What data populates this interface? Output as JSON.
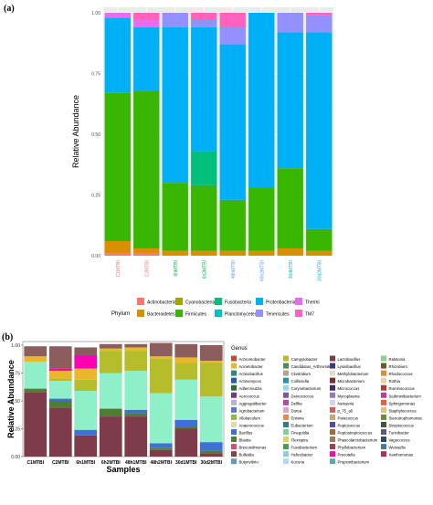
{
  "panel_a": {
    "label": "(a)"
  },
  "panel_b": {
    "label": "(b)"
  },
  "chart_data": [
    {
      "type": "bar",
      "stacked": true,
      "ylabel": "Relative Abundance",
      "xlabel": "",
      "ylim": [
        0,
        1
      ],
      "yticks": [
        "0.00",
        "0.25",
        "0.50",
        "0.75",
        "1.00"
      ],
      "grid": true,
      "legend_title": "Phylum",
      "legend_position": "bottom",
      "categories": [
        "C1MTBI",
        "C2MTBI",
        "6hMTBI",
        "6h2MTBI",
        "48hMTBI",
        "48h2MTBI",
        "30dMTBI",
        "30d2MTBI"
      ],
      "category_colors": [
        "#F8766D",
        "#F8766D",
        "#00BA38",
        "#00BA38",
        "#619CFF",
        "#619CFF",
        "#00BFC4",
        "#00BFC4"
      ],
      "series": [
        {
          "name": "Actinobacteria",
          "color": "#F8766D",
          "values": [
            0.01,
            0.01,
            0.0,
            0.0,
            0.0,
            0.0,
            0.0,
            0.0
          ]
        },
        {
          "name": "Bacteroidetes",
          "color": "#D89000",
          "values": [
            0.05,
            0.02,
            0.02,
            0.02,
            0.02,
            0.02,
            0.03,
            0.02
          ]
        },
        {
          "name": "Cyanobacteria",
          "color": "#A3A500",
          "values": [
            0.0,
            0.0,
            0.0,
            0.0,
            0.0,
            0.0,
            0.0,
            0.0
          ]
        },
        {
          "name": "Firmicutes",
          "color": "#39B600",
          "values": [
            0.61,
            0.65,
            0.28,
            0.27,
            0.21,
            0.26,
            0.33,
            0.09
          ]
        },
        {
          "name": "Fusobacteria",
          "color": "#00BF7D",
          "values": [
            0.0,
            0.0,
            0.0,
            0.14,
            0.0,
            0.0,
            0.0,
            0.0
          ]
        },
        {
          "name": "Planctomycetes",
          "color": "#00BFC4",
          "values": [
            0.0,
            0.0,
            0.0,
            0.0,
            0.0,
            0.0,
            0.0,
            0.0
          ]
        },
        {
          "name": "Proteobacteria",
          "color": "#00B0F6",
          "values": [
            0.31,
            0.26,
            0.64,
            0.51,
            0.64,
            0.72,
            0.56,
            0.81
          ]
        },
        {
          "name": "Tenericutes",
          "color": "#9590FF",
          "values": [
            0.0,
            0.0,
            0.06,
            0.03,
            0.07,
            0.0,
            0.08,
            0.07
          ]
        },
        {
          "name": "Thermi",
          "color": "#E76BF3",
          "values": [
            0.02,
            0.03,
            0.0,
            0.0,
            0.0,
            0.0,
            0.0,
            0.0
          ]
        },
        {
          "name": "TM7",
          "color": "#FF62BC",
          "values": [
            0.0,
            0.03,
            0.0,
            0.03,
            0.06,
            0.0,
            0.0,
            0.01
          ]
        }
      ]
    },
    {
      "type": "bar",
      "stacked": true,
      "ylabel": "Relative Abundance",
      "xlabel": "Samples",
      "ylim": [
        0,
        1
      ],
      "yticks": [
        "0.00",
        "0.25",
        "0.50",
        "0.75",
        "1.00"
      ],
      "grid": false,
      "legend_title": "Genus",
      "legend_position": "right",
      "categories": [
        "C1MTBI",
        "C2MTBI",
        "6h1MTBI",
        "6h2MTBI",
        "48h1MTBI",
        "48h2MTBI",
        "30d1MTBI",
        "30d2MTBI"
      ],
      "series": [
        {
          "name": "Lactobacillus",
          "color": "#7E3B4B",
          "values": [
            0.58,
            0.44,
            0.19,
            0.36,
            0.36,
            0.06,
            0.25,
            0.03
          ]
        },
        {
          "name": "Blautia",
          "color": "#4F7D34",
          "values": [
            0.03,
            0.06,
            0.0,
            0.07,
            0.03,
            0.02,
            0.02,
            0.02
          ]
        },
        {
          "name": "Bacillus",
          "color": "#3F6FD8",
          "values": [
            0.0,
            0.02,
            0.05,
            0.0,
            0.03,
            0.04,
            0.06,
            0.08
          ]
        },
        {
          "name": "Escherichia",
          "color": "#8DF0C9",
          "values": [
            0.24,
            0.16,
            0.35,
            0.32,
            0.35,
            0.45,
            0.36,
            0.41
          ]
        },
        {
          "name": "Campylobacter",
          "color": "#B6BD2A",
          "values": [
            0.0,
            0.02,
            0.1,
            0.2,
            0.18,
            0.31,
            0.15,
            0.3
          ]
        },
        {
          "name": "Acinetobacter",
          "color": "#EBB72A",
          "values": [
            0.05,
            0.07,
            0.1,
            0.02,
            0.03,
            0.02,
            0.05,
            0.02
          ]
        },
        {
          "name": "Prevotella",
          "color": "#FF00B2",
          "values": [
            0.0,
            0.02,
            0.12,
            0.0,
            0.0,
            0.0,
            0.0,
            0.0
          ]
        },
        {
          "name": "Enterococcus",
          "color": "#8B5D5D",
          "values": [
            0.09,
            0.2,
            0.07,
            0.04,
            0.03,
            0.12,
            0.12,
            0.14
          ]
        }
      ],
      "legend_entries": [
        {
          "label": "Achromobacter",
          "color": "#C14C34"
        },
        {
          "label": "Acinetobacter",
          "color": "#EBB72A"
        },
        {
          "label": "Actinobacillus",
          "color": "#2C8A7B"
        },
        {
          "label": "Actinomyces",
          "color": "#2A5AAE"
        },
        {
          "label": "Adlercreutzia",
          "color": "#2F6E2F"
        },
        {
          "label": "Aerococcus",
          "color": "#6D3A8E"
        },
        {
          "label": "Aggregatibacter",
          "color": "#B7B1DB"
        },
        {
          "label": "Agrobacterium",
          "color": "#5C78C4"
        },
        {
          "label": "Allobaculum",
          "color": "#8FBC3A"
        },
        {
          "label": "Anaerococcus",
          "color": "#E6D9AC"
        },
        {
          "label": "Bacillus",
          "color": "#3F6FD8"
        },
        {
          "label": "Blautia",
          "color": "#4F7D34"
        },
        {
          "label": "Brevundimonas",
          "color": "#D24A7C"
        },
        {
          "label": "Bulleidia",
          "color": "#8C3F3F"
        },
        {
          "label": "Butyrivibrio",
          "color": "#5D9CC0"
        },
        {
          "label": "Campylobacter",
          "color": "#B6BD2A"
        },
        {
          "label": "Candidatus_Arthromitus",
          "color": "#4F8C59"
        },
        {
          "label": "Clostridium",
          "color": "#B3A58F"
        },
        {
          "label": "Collinsella",
          "color": "#2A8FA8"
        },
        {
          "label": "Corynebacterium",
          "color": "#94D8F0"
        },
        {
          "label": "Deinococcus",
          "color": "#7A5A9F"
        },
        {
          "label": "Delftia",
          "color": "#B04AA2"
        },
        {
          "label": "Dorea",
          "color": "#E0A3C8"
        },
        {
          "label": "Erwinia",
          "color": "#E38A4A"
        },
        {
          "label": "Eubacterium",
          "color": "#2F7E8A"
        },
        {
          "label": "Finegoldia",
          "color": "#7ED0A0"
        },
        {
          "label": "Flexispira",
          "color": "#D8D85B"
        },
        {
          "label": "Fusobacterium",
          "color": "#4E9A4E"
        },
        {
          "label": "Helicobacter",
          "color": "#8CCDD8"
        },
        {
          "label": "Kocuria",
          "color": "#B7D6F0"
        },
        {
          "label": "Lactobacillus",
          "color": "#7E3B4B"
        },
        {
          "label": "Lysinibacillus",
          "color": "#3A3A7A"
        },
        {
          "label": "Methylobacterium",
          "color": "#E0E0C0"
        },
        {
          "label": "Microbacterium",
          "color": "#7C2A35"
        },
        {
          "label": "Micrococcus",
          "color": "#3A2F6A"
        },
        {
          "label": "Mycoplasma",
          "color": "#8F7AC0"
        },
        {
          "label": "Neisseria",
          "color": "#D4D4EC"
        },
        {
          "label": "p_75_a5",
          "color": "#D65A5A"
        },
        {
          "label": "Paracoccus",
          "color": "#C7A86A"
        },
        {
          "label": "Peptococcus",
          "color": "#5A4AA8"
        },
        {
          "label": "Peptostreptococcus",
          "color": "#A06A3A"
        },
        {
          "label": "Phascolarctobacterium",
          "color": "#9C7A5A"
        },
        {
          "label": "Phyllobacterium",
          "color": "#A23A5A"
        },
        {
          "label": "Prevotella",
          "color": "#FF00B2"
        },
        {
          "label": "Propionibacterium",
          "color": "#5AA8A8"
        },
        {
          "label": "Ralstonia",
          "color": "#8ACF8A"
        },
        {
          "label": "Rhizobium",
          "color": "#6A5A2F"
        },
        {
          "label": "Rhodococcus",
          "color": "#E08A3A"
        },
        {
          "label": "Rothia",
          "color": "#F0D0A0"
        },
        {
          "label": "Ruminococcus",
          "color": "#B03A2F"
        },
        {
          "label": "Sediminibacterium",
          "color": "#C83A8A"
        },
        {
          "label": "Sphingomonas",
          "color": "#F05A3A"
        },
        {
          "label": "Staphylococcus",
          "color": "#E0C070"
        },
        {
          "label": "Stenotrophomonas",
          "color": "#6A8A3A"
        },
        {
          "label": "Streptococcus",
          "color": "#3A5A2F"
        },
        {
          "label": "Turicibacter",
          "color": "#5A5A7A"
        },
        {
          "label": "Vagococcus",
          "color": "#2F4A6A"
        },
        {
          "label": "Weissella",
          "color": "#4A7A9A"
        },
        {
          "label": "Xanthomonas",
          "color": "#B02A5A"
        }
      ]
    }
  ]
}
